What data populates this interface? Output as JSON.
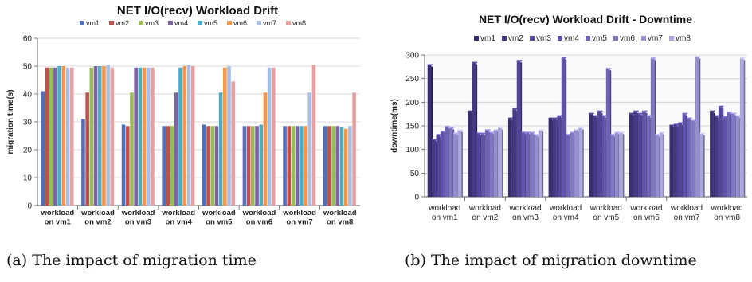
{
  "captions": {
    "a": "(a) The impact of migration time",
    "b": "(b) The impact of migration downtime"
  },
  "chart_data": [
    {
      "type": "bar",
      "title": "NET I/O(recv) Workload Drift",
      "xlabel": "",
      "ylabel": "migration time(s)",
      "ylim": [
        0,
        60
      ],
      "yticks": [
        0,
        10,
        20,
        30,
        40,
        50,
        60
      ],
      "grid": true,
      "legend_position": "top",
      "categories": [
        "workload on vm1",
        "workload on vm2",
        "workload on vm3",
        "workload on vm4",
        "workload on vm5",
        "workload on vm6",
        "workload on vm7",
        "workload on vm8"
      ],
      "series": [
        {
          "name": "vm1",
          "color": "#4f6fb8",
          "values": [
            41,
            31,
            29,
            28.5,
            29,
            28.5,
            28.5,
            28.5
          ]
        },
        {
          "name": "vm2",
          "color": "#c0504d",
          "values": [
            49.5,
            40.5,
            28.5,
            28.5,
            28.5,
            28.5,
            28.5,
            28.5
          ]
        },
        {
          "name": "vm3",
          "color": "#9bbb59",
          "values": [
            49.5,
            49.5,
            40.5,
            28.5,
            28.5,
            28.5,
            28.5,
            28.5
          ]
        },
        {
          "name": "vm4",
          "color": "#7e62a1",
          "values": [
            49.5,
            50,
            49.5,
            40.5,
            28.5,
            28.5,
            28.5,
            28.5
          ]
        },
        {
          "name": "vm5",
          "color": "#4bacc6",
          "values": [
            50,
            50,
            49.5,
            49.5,
            40.5,
            29,
            28.5,
            28
          ]
        },
        {
          "name": "vm6",
          "color": "#f79646",
          "values": [
            50,
            50,
            49.5,
            50,
            49.5,
            40.5,
            28.5,
            27.5
          ]
        },
        {
          "name": "vm7",
          "color": "#a7bfe4",
          "values": [
            49.5,
            50.5,
            49.5,
            50.5,
            50,
            49.5,
            40.5,
            28.5
          ]
        },
        {
          "name": "vm8",
          "color": "#e6a0a0",
          "values": [
            49.5,
            49.5,
            49.5,
            50,
            44.5,
            49.5,
            50.5,
            40.5
          ]
        }
      ]
    },
    {
      "type": "bar",
      "title": "NET I/O(recv) Workload Drift - Downtime",
      "xlabel": "",
      "ylabel": "downtime(ms)",
      "ylim": [
        0,
        300
      ],
      "yticks": [
        0,
        50,
        100,
        150,
        200,
        250,
        300
      ],
      "grid": true,
      "legend_position": "top",
      "categories": [
        "workload on vm1",
        "workload on vm2",
        "workload on vm3",
        "workload on vm4",
        "workload on vm5",
        "workload on vm6",
        "workload on vm7",
        "workload on vm8"
      ],
      "series": [
        {
          "name": "vm1",
          "color": "#3a2e72",
          "values": [
            278,
            180,
            165,
            165,
            175,
            175,
            150,
            180
          ]
        },
        {
          "name": "vm2",
          "color": "#453887",
          "values": [
            120,
            283,
            185,
            165,
            170,
            180,
            152,
            170
          ]
        },
        {
          "name": "vm3",
          "color": "#51449a",
          "values": [
            130,
            133,
            287,
            170,
            180,
            175,
            155,
            190
          ]
        },
        {
          "name": "vm4",
          "color": "#5e52aa",
          "values": [
            137,
            133,
            135,
            293,
            170,
            180,
            175,
            168
          ]
        },
        {
          "name": "vm5",
          "color": "#6e63b7",
          "values": [
            147,
            140,
            135,
            130,
            270,
            170,
            165,
            178
          ]
        },
        {
          "name": "vm6",
          "color": "#8178c4",
          "values": [
            145,
            135,
            135,
            135,
            130,
            292,
            160,
            175
          ]
        },
        {
          "name": "vm7",
          "color": "#958fd1",
          "values": [
            133,
            140,
            130,
            140,
            135,
            130,
            295,
            170
          ]
        },
        {
          "name": "vm8",
          "color": "#aaa6de",
          "values": [
            140,
            145,
            140,
            145,
            135,
            135,
            133,
            292
          ]
        }
      ]
    }
  ]
}
